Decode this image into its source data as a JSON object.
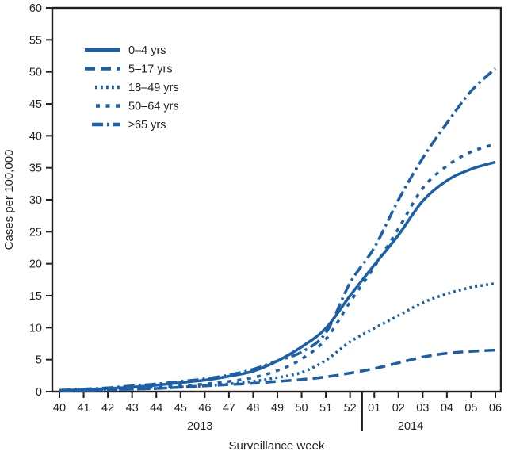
{
  "chart_data": {
    "type": "line",
    "title": "",
    "xlabel": "Surveillance week",
    "ylabel": "Cases per 100,000",
    "ylim": [
      0,
      60
    ],
    "ytick_step": 5,
    "grid": false,
    "legend_position": "upper-left-inside",
    "line_color": "#1A5FA8",
    "axis_color": "#231F20",
    "y_tick_labels": [
      "0",
      "5",
      "10",
      "15",
      "20",
      "25",
      "30",
      "35",
      "40",
      "45",
      "50",
      "55",
      "60"
    ],
    "x_tick_labels": [
      "40",
      "41",
      "42",
      "43",
      "44",
      "45",
      "46",
      "47",
      "48",
      "49",
      "50",
      "51",
      "52",
      "01",
      "02",
      "03",
      "04",
      "05",
      "06"
    ],
    "year_labels": [
      "2013",
      "2014"
    ],
    "year_separator_after": "52",
    "series": [
      {
        "name": "0–4 yrs",
        "dash": "solid",
        "values": [
          0.2,
          0.3,
          0.5,
          0.7,
          1.0,
          1.4,
          1.8,
          2.4,
          3.2,
          4.8,
          7.0,
          9.9,
          15.0,
          19.8,
          24.5,
          29.8,
          33.0,
          34.8,
          35.9
        ]
      },
      {
        "name": "5–17 yrs",
        "dash": "long-dash",
        "values": [
          0.1,
          0.2,
          0.3,
          0.4,
          0.5,
          0.7,
          0.9,
          1.1,
          1.3,
          1.6,
          1.9,
          2.3,
          2.9,
          3.6,
          4.5,
          5.4,
          6.0,
          6.3,
          6.5
        ]
      },
      {
        "name": "18–49 yrs",
        "dash": "dotted",
        "values": [
          0.1,
          0.2,
          0.3,
          0.4,
          0.5,
          0.7,
          0.9,
          1.2,
          1.6,
          2.2,
          3.0,
          4.9,
          7.8,
          9.9,
          11.9,
          13.9,
          15.3,
          16.3,
          16.9
        ]
      },
      {
        "name": "50–64 yrs",
        "dash": "medium-dash",
        "values": [
          0.1,
          0.2,
          0.3,
          0.5,
          0.7,
          0.9,
          1.2,
          1.6,
          2.2,
          3.3,
          5.1,
          8.2,
          14.0,
          19.5,
          25.5,
          31.8,
          35.3,
          37.5,
          38.7
        ]
      },
      {
        "name": "≥65 yrs",
        "dash": "dash-dot",
        "values": [
          0.2,
          0.4,
          0.6,
          0.9,
          1.2,
          1.6,
          2.0,
          2.6,
          3.5,
          4.8,
          6.2,
          9.2,
          17.0,
          22.5,
          30.0,
          36.5,
          42.0,
          47.0,
          50.5
        ]
      }
    ]
  }
}
